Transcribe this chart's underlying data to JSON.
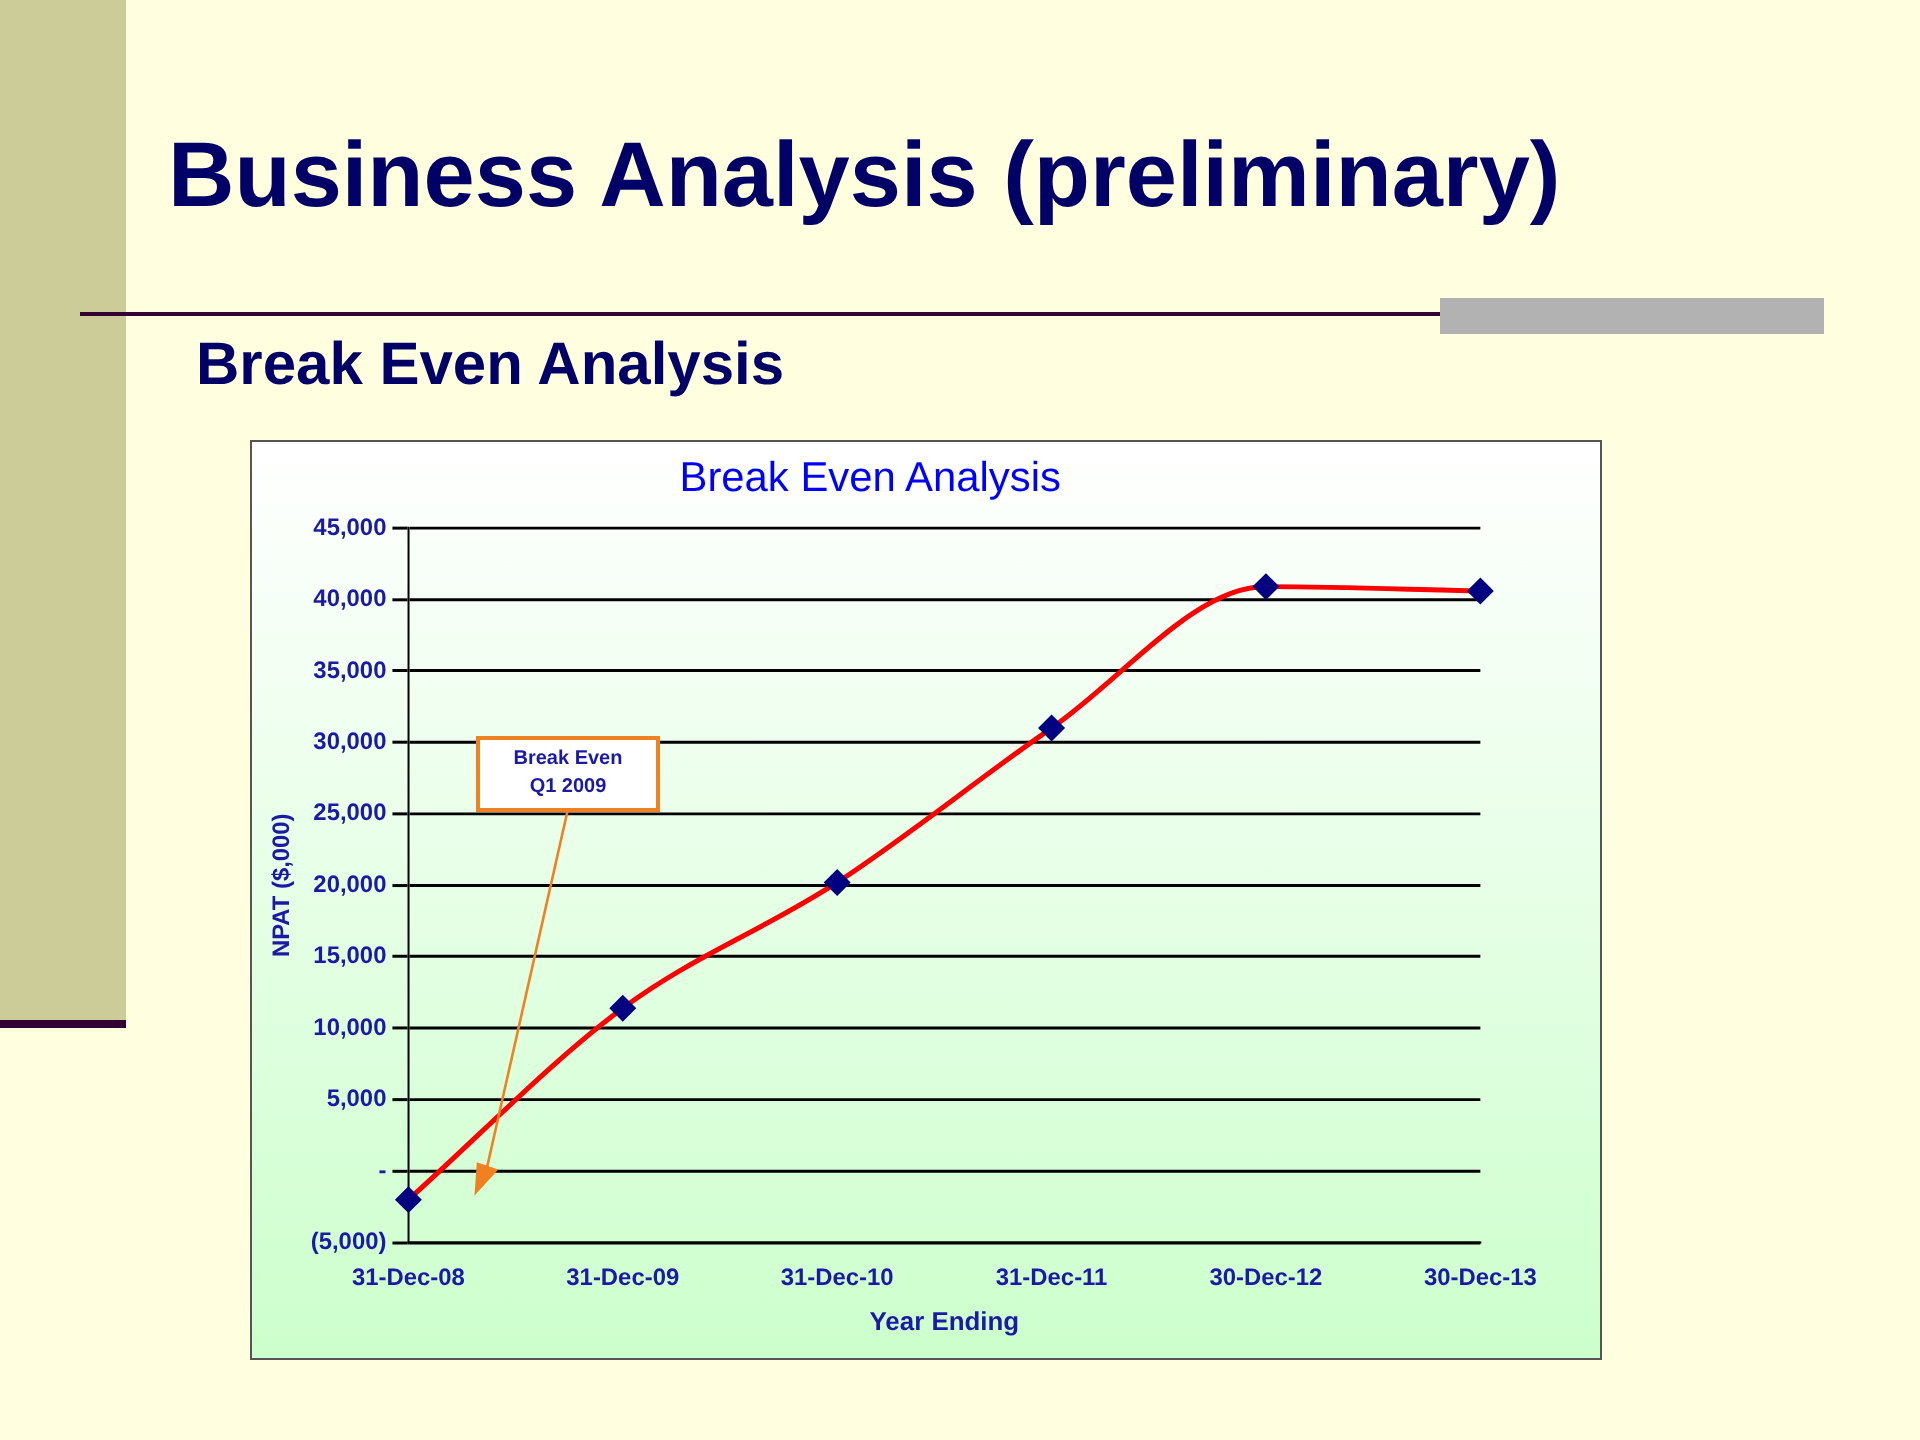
{
  "chart_data": {
    "type": "line",
    "title": "Business Analysis (preliminary)",
    "subtitle": "Break Even Analysis",
    "xlabel": "Year Ending",
    "ylabel": "NPAT ($,000)",
    "categories": [
      "31-Dec-08",
      "31-Dec-09",
      "31-Dec-10",
      "31-Dec-11",
      "30-Dec-12",
      "30-Dec-13"
    ],
    "series": [
      {
        "color": "#ff0000",
        "values": [
          -2000,
          11400,
          20200,
          31000,
          40900,
          40600
        ]
      }
    ],
    "ylim": [
      -5000,
      45000
    ],
    "yticks": [
      {
        "value": -5000,
        "label": "(5,000)"
      },
      {
        "value": 0,
        "label": "-"
      },
      {
        "value": 5000,
        "label": "5,000"
      },
      {
        "value": 10000,
        "label": "10,000"
      },
      {
        "value": 15000,
        "label": "15,000"
      },
      {
        "value": 20000,
        "label": "20,000"
      },
      {
        "value": 25000,
        "label": "25,000"
      },
      {
        "value": 30000,
        "label": "30,000"
      },
      {
        "value": 35000,
        "label": "35,000"
      },
      {
        "value": 40000,
        "label": "40,000"
      },
      {
        "value": 45000,
        "label": "45,000"
      }
    ],
    "grid": "y",
    "legend": false,
    "marker": "diamond",
    "line_style": "solid",
    "annotations": [
      "Break Even Analysis",
      "Break Even\nQ1 2009"
    ]
  }
}
